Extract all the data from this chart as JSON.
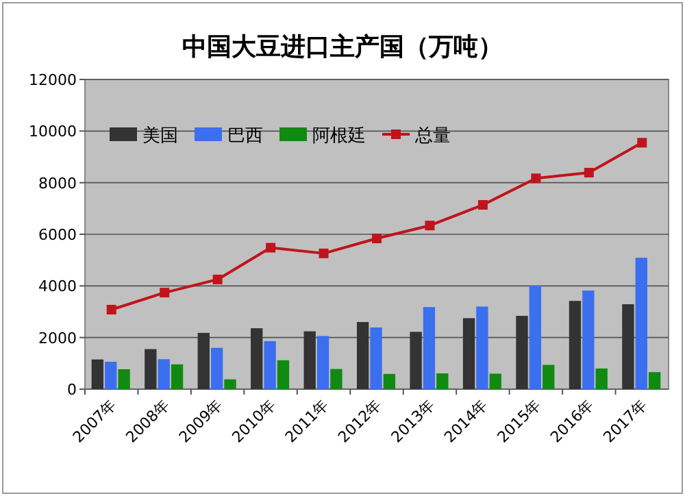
{
  "chart_data": {
    "type": "bar",
    "title": "中国大豆进口主产国（万吨）",
    "categories": [
      "2007年",
      "2008年",
      "2009年",
      "2010年",
      "2011年",
      "2012年",
      "2013年",
      "2014年",
      "2015年",
      "2016年",
      "2017年"
    ],
    "series": [
      {
        "name": "美国",
        "color": "#333333",
        "values": [
          1150,
          1550,
          2180,
          2360,
          2240,
          2600,
          2220,
          2750,
          2840,
          3420,
          3290
        ]
      },
      {
        "name": "巴西",
        "color": "#3b6ff0",
        "values": [
          1060,
          1160,
          1600,
          1860,
          2060,
          2390,
          3180,
          3200,
          4010,
          3820,
          5090
        ]
      },
      {
        "name": "阿根廷",
        "color": "#118a11",
        "values": [
          770,
          960,
          380,
          1120,
          780,
          590,
          610,
          600,
          940,
          800,
          660
        ]
      },
      {
        "name": "总量",
        "type": "line",
        "marker": "square",
        "color": "#c0141c",
        "values": [
          3080,
          3740,
          4250,
          5480,
          5260,
          5840,
          6340,
          7140,
          8170,
          8390,
          9550
        ]
      }
    ],
    "ylim": [
      0,
      12000
    ],
    "yticks": [
      0,
      2000,
      4000,
      6000,
      8000,
      10000,
      12000
    ],
    "grid": "y",
    "legend": "top left"
  }
}
